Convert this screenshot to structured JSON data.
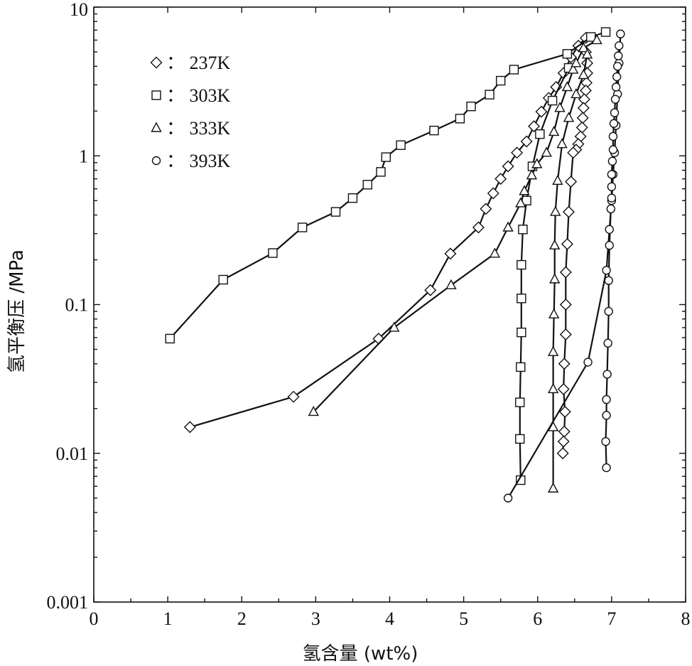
{
  "chart_data": {
    "type": "scatter",
    "title": "",
    "xlabel": "氢含量 (wt%)",
    "ylabel": "氢平衡压 /MPa",
    "xlim": [
      0,
      8
    ],
    "ylim": [
      0.001,
      10
    ],
    "y_scale": "log",
    "x_ticks": [
      "0",
      "1",
      "2",
      "3",
      "4",
      "5",
      "6",
      "7",
      "8"
    ],
    "y_ticks": [
      "0.001",
      "0.01",
      "0.1",
      "1",
      "10"
    ],
    "grid": false,
    "legend_position": "top-left",
    "series": [
      {
        "name": "237K",
        "legend_label": "：  237K",
        "marker": "diamond",
        "points": [
          [
            1.3,
            0.015
          ],
          [
            2.7,
            0.024
          ],
          [
            3.85,
            0.059
          ],
          [
            4.55,
            0.125
          ],
          [
            4.82,
            0.22
          ],
          [
            5.2,
            0.33
          ],
          [
            5.3,
            0.44
          ],
          [
            5.4,
            0.56
          ],
          [
            5.5,
            0.7
          ],
          [
            5.6,
            0.85
          ],
          [
            5.72,
            1.05
          ],
          [
            5.85,
            1.25
          ],
          [
            5.95,
            1.58
          ],
          [
            6.05,
            1.98
          ],
          [
            6.15,
            2.45
          ],
          [
            6.25,
            2.9
          ],
          [
            6.35,
            3.6
          ],
          [
            6.45,
            4.6
          ],
          [
            6.55,
            5.5
          ],
          [
            6.65,
            6.2
          ]
        ],
        "points_desorption": [
          [
            6.65,
            5.0
          ],
          [
            6.67,
            4.2
          ],
          [
            6.67,
            3.6
          ],
          [
            6.66,
            3.1
          ],
          [
            6.65,
            2.75
          ],
          [
            6.63,
            2.4
          ],
          [
            6.62,
            2.1
          ],
          [
            6.61,
            1.8
          ],
          [
            6.6,
            1.55
          ],
          [
            6.58,
            1.35
          ],
          [
            6.55,
            1.2
          ],
          [
            6.52,
            1.1
          ],
          [
            6.48,
            1.05
          ],
          [
            6.45,
            0.67
          ],
          [
            6.42,
            0.42
          ],
          [
            6.4,
            0.255
          ],
          [
            6.38,
            0.165
          ],
          [
            6.38,
            0.1
          ],
          [
            6.38,
            0.063
          ],
          [
            6.36,
            0.04
          ],
          [
            6.35,
            0.027
          ],
          [
            6.37,
            0.019
          ],
          [
            6.36,
            0.014
          ],
          [
            6.35,
            0.012
          ],
          [
            6.34,
            0.01
          ]
        ]
      },
      {
        "name": "303K",
        "legend_label": "：  303K",
        "marker": "square",
        "points": [
          [
            1.03,
            0.059
          ],
          [
            1.75,
            0.147
          ],
          [
            2.42,
            0.222
          ],
          [
            2.82,
            0.33
          ],
          [
            3.27,
            0.42
          ],
          [
            3.5,
            0.52
          ],
          [
            3.7,
            0.64
          ],
          [
            3.88,
            0.78
          ],
          [
            3.95,
            0.98
          ],
          [
            4.15,
            1.18
          ],
          [
            4.6,
            1.48
          ],
          [
            4.95,
            1.78
          ],
          [
            5.1,
            2.15
          ],
          [
            5.35,
            2.58
          ],
          [
            5.5,
            3.2
          ],
          [
            5.68,
            3.8
          ],
          [
            6.4,
            4.85
          ],
          [
            6.72,
            6.3
          ],
          [
            6.92,
            6.8
          ]
        ],
        "points_desorption": [
          [
            6.42,
            3.9
          ],
          [
            6.2,
            2.35
          ],
          [
            6.03,
            1.4
          ],
          [
            5.93,
            0.85
          ],
          [
            5.85,
            0.5
          ],
          [
            5.8,
            0.32
          ],
          [
            5.78,
            0.185
          ],
          [
            5.78,
            0.11
          ],
          [
            5.78,
            0.065
          ],
          [
            5.77,
            0.038
          ],
          [
            5.76,
            0.022
          ],
          [
            5.76,
            0.0125
          ],
          [
            5.77,
            0.0066
          ]
        ]
      },
      {
        "name": "333K",
        "legend_label": "：  333K",
        "marker": "triangle",
        "points": [
          [
            2.97,
            0.019
          ],
          [
            4.06,
            0.07
          ],
          [
            4.83,
            0.135
          ],
          [
            5.42,
            0.22
          ],
          [
            5.6,
            0.33
          ],
          [
            5.77,
            0.48
          ],
          [
            5.82,
            0.58
          ],
          [
            5.92,
            0.74
          ],
          [
            5.99,
            0.88
          ],
          [
            6.12,
            1.05
          ],
          [
            6.22,
            1.45
          ],
          [
            6.3,
            2.1
          ],
          [
            6.4,
            2.9
          ],
          [
            6.48,
            3.8
          ],
          [
            6.52,
            4.2
          ],
          [
            6.62,
            5.3
          ],
          [
            6.8,
            6.0
          ]
        ],
        "points_desorption": [
          [
            6.67,
            4.8
          ],
          [
            6.62,
            3.5
          ],
          [
            6.52,
            2.6
          ],
          [
            6.42,
            1.8
          ],
          [
            6.33,
            1.2
          ],
          [
            6.27,
            0.68
          ],
          [
            6.24,
            0.42
          ],
          [
            6.23,
            0.25
          ],
          [
            6.23,
            0.148
          ],
          [
            6.22,
            0.086
          ],
          [
            6.21,
            0.048
          ],
          [
            6.21,
            0.027
          ],
          [
            6.21,
            0.015
          ],
          [
            6.21,
            0.0058
          ]
        ]
      },
      {
        "name": "393K",
        "legend_label": "：  393K",
        "marker": "circle",
        "points": [
          [
            5.6,
            0.005
          ],
          [
            6.68,
            0.041
          ],
          [
            6.93,
            0.17
          ],
          [
            6.97,
            0.32
          ],
          [
            7.0,
            0.5
          ],
          [
            7.02,
            0.75
          ],
          [
            7.04,
            1.05
          ],
          [
            7.06,
            1.6
          ],
          [
            7.08,
            2.6
          ],
          [
            7.1,
            4.2
          ],
          [
            7.12,
            6.6
          ]
        ],
        "points_desorption": [
          [
            7.1,
            5.5
          ],
          [
            7.09,
            4.7
          ],
          [
            7.08,
            4.0
          ],
          [
            7.07,
            3.4
          ],
          [
            7.06,
            2.9
          ],
          [
            7.05,
            2.4
          ],
          [
            7.04,
            1.95
          ],
          [
            7.03,
            1.65
          ],
          [
            7.02,
            1.35
          ],
          [
            7.02,
            1.1
          ],
          [
            7.01,
            0.92
          ],
          [
            7.0,
            0.75
          ],
          [
            7.0,
            0.62
          ],
          [
            7.0,
            0.52
          ],
          [
            6.99,
            0.44
          ],
          [
            6.97,
            0.25
          ],
          [
            6.96,
            0.145
          ],
          [
            6.96,
            0.09
          ],
          [
            6.95,
            0.055
          ],
          [
            6.94,
            0.034
          ],
          [
            6.93,
            0.023
          ],
          [
            6.93,
            0.018
          ],
          [
            6.92,
            0.012
          ],
          [
            6.93,
            0.008
          ]
        ]
      }
    ]
  }
}
